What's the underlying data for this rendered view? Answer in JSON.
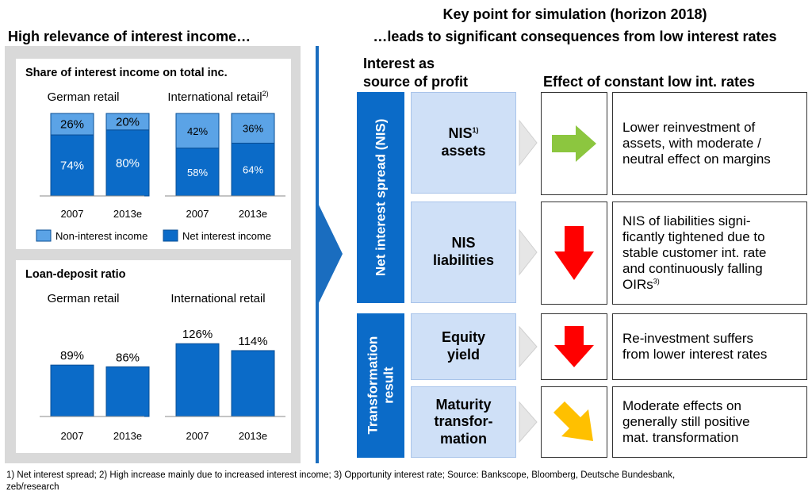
{
  "left_header": "High relevance of interest income…",
  "right_header_line1": "Key point for simulation (horizon 2018)",
  "right_header_line2": "…leads to significant consequences from low interest rates",
  "col_interest_line1": "Interest as",
  "col_interest_line2": "source of profit",
  "col_effect": "Effect of constant low int. rates",
  "nis_label": "Net interest spread (NIS)",
  "transformation_label_line1": "Transformation",
  "transformation_label_line2": "result",
  "sources": [
    {
      "line1": "NIS",
      "sup": "1)",
      "line2": "assets"
    },
    {
      "line1": "NIS",
      "sup": "",
      "line2": "liabilities"
    },
    {
      "line1": "Equity",
      "sup": "",
      "line2": "yield"
    },
    {
      "line1": "Maturity",
      "sup": "",
      "line2": "transfor-",
      "line3": "mation"
    }
  ],
  "effects": [
    {
      "arrow": "right-arrow-icon",
      "color": "#8cc63f",
      "lines": [
        "Lower reinvestment of",
        "assets, with moderate /",
        "neutral effect on margins"
      ],
      "sup": ""
    },
    {
      "arrow": "down-arrow-icon",
      "color": "#ff0000",
      "lines": [
        "NIS of liabilities signi-",
        "ficantly tightened due to",
        "stable customer int. rate",
        "and continuously falling",
        "OIRs"
      ],
      "sup": "3)"
    },
    {
      "arrow": "down-arrow-icon",
      "color": "#ff0000",
      "lines": [
        "Re-investment suffers",
        "from lower interest rates"
      ],
      "sup": ""
    },
    {
      "arrow": "diagonal-arrow-icon",
      "color": "#ffc000",
      "lines": [
        "Moderate effects on",
        "generally still positive",
        "mat. transformation"
      ],
      "sup": ""
    }
  ],
  "footnote_line1": "1) Net interest spread; 2) High increase mainly due to increased interest income; 3) Opportunity interest rate; Source: Bankscope, Bloomberg, Deutsche Bundesbank,",
  "footnote_line2": "zeb/research",
  "chart_data": [
    {
      "type": "bar",
      "stacked": true,
      "title": "Share of interest income on total inc.",
      "groups": [
        {
          "name": "German retail",
          "name_sup": "",
          "categories": [
            "2007",
            "2013e"
          ]
        },
        {
          "name": "International retail",
          "name_sup": "2)",
          "categories": [
            "2007",
            "2013e"
          ]
        }
      ],
      "series": [
        {
          "name": "Net interest income",
          "color": "#0b6bc8",
          "values": [
            74,
            80,
            58,
            64
          ],
          "labels": [
            "74%",
            "80%",
            "58%",
            "64%"
          ]
        },
        {
          "name": "Non-interest income",
          "color": "#5ba3e6",
          "values": [
            26,
            20,
            42,
            36
          ],
          "labels": [
            "26%",
            "20%",
            "42%",
            "36%"
          ]
        }
      ],
      "legend": [
        "Non-interest income",
        "Net interest income"
      ],
      "ylim": [
        0,
        100
      ]
    },
    {
      "type": "bar",
      "title": "Loan-deposit ratio",
      "groups": [
        {
          "name": "German retail",
          "categories": [
            "2007",
            "2013e"
          ]
        },
        {
          "name": "International retail",
          "categories": [
            "2007",
            "2013e"
          ]
        }
      ],
      "series": [
        {
          "name": "",
          "color": "#0b6bc8",
          "values": [
            89,
            86,
            126,
            114
          ],
          "labels": [
            "89%",
            "86%",
            "126%",
            "114%"
          ]
        }
      ],
      "ylim": [
        0,
        140
      ]
    }
  ]
}
